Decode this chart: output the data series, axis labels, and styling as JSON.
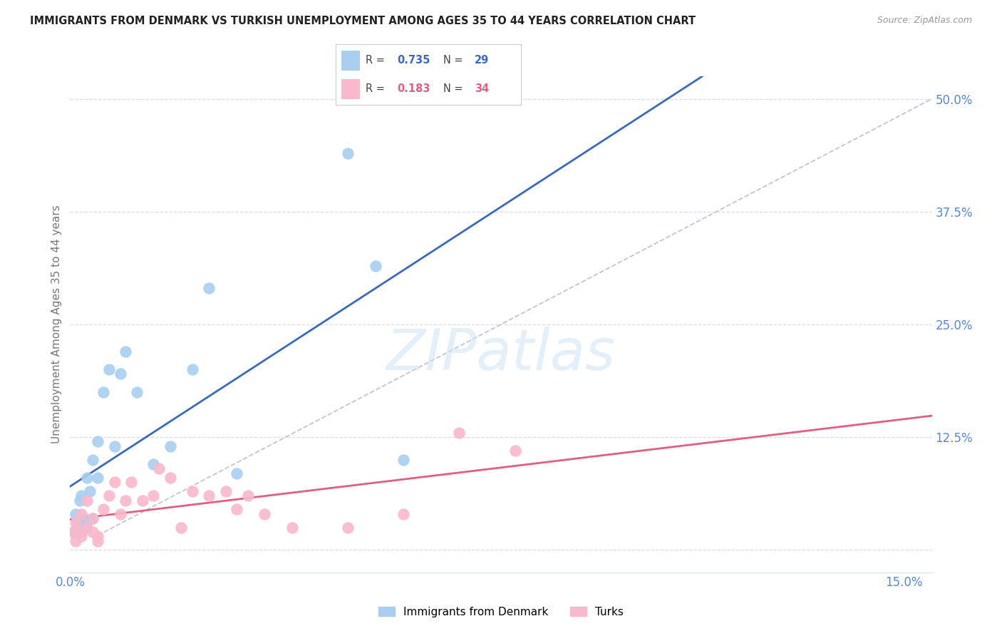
{
  "title": "IMMIGRANTS FROM DENMARK VS TURKISH UNEMPLOYMENT AMONG AGES 35 TO 44 YEARS CORRELATION CHART",
  "source": "Source: ZipAtlas.com",
  "ylabel": "Unemployment Among Ages 35 to 44 years",
  "R_denmark": 0.735,
  "N_denmark": 29,
  "R_turks": 0.183,
  "N_turks": 34,
  "color_denmark": "#a8cff0",
  "color_turks": "#f9b8cb",
  "line_color_denmark": "#3a6abf",
  "line_color_turks": "#e06080",
  "line_color_diagonal": "#b0b8c0",
  "background_color": "#ffffff",
  "grid_color": "#d8dde8",
  "title_color": "#222222",
  "axis_label_color": "#5588dd",
  "denmark_x": [
    0.0008,
    0.001,
    0.0012,
    0.0015,
    0.0018,
    0.002,
    0.002,
    0.0025,
    0.003,
    0.003,
    0.0035,
    0.004,
    0.004,
    0.005,
    0.005,
    0.006,
    0.007,
    0.008,
    0.009,
    0.01,
    0.012,
    0.015,
    0.018,
    0.022,
    0.025,
    0.03,
    0.05,
    0.055,
    0.06
  ],
  "denmark_y": [
    0.02,
    0.04,
    0.025,
    0.03,
    0.055,
    0.02,
    0.06,
    0.035,
    0.025,
    0.08,
    0.065,
    0.1,
    0.035,
    0.12,
    0.08,
    0.175,
    0.2,
    0.115,
    0.195,
    0.22,
    0.175,
    0.095,
    0.115,
    0.2,
    0.29,
    0.085,
    0.44,
    0.315,
    0.1
  ],
  "turks_x": [
    0.0005,
    0.001,
    0.001,
    0.0015,
    0.002,
    0.002,
    0.003,
    0.003,
    0.004,
    0.004,
    0.005,
    0.005,
    0.006,
    0.007,
    0.008,
    0.009,
    0.01,
    0.011,
    0.013,
    0.015,
    0.016,
    0.018,
    0.02,
    0.022,
    0.025,
    0.028,
    0.03,
    0.032,
    0.035,
    0.04,
    0.05,
    0.06,
    0.07,
    0.08
  ],
  "turks_y": [
    0.02,
    0.01,
    0.03,
    0.02,
    0.015,
    0.04,
    0.025,
    0.055,
    0.02,
    0.035,
    0.01,
    0.015,
    0.045,
    0.06,
    0.075,
    0.04,
    0.055,
    0.075,
    0.055,
    0.06,
    0.09,
    0.08,
    0.025,
    0.065,
    0.06,
    0.065,
    0.045,
    0.06,
    0.04,
    0.025,
    0.025,
    0.04,
    0.13,
    0.11
  ],
  "xlim": [
    0.0,
    0.155
  ],
  "ylim": [
    -0.025,
    0.525
  ],
  "x_tick_vals": [
    0.0,
    0.15
  ],
  "x_tick_labels": [
    "0.0%",
    "15.0%"
  ],
  "y_tick_vals": [
    0.0,
    0.125,
    0.25,
    0.375,
    0.5
  ],
  "y_tick_labels": [
    "",
    "12.5%",
    "25.0%",
    "37.5%",
    "50.0%"
  ]
}
